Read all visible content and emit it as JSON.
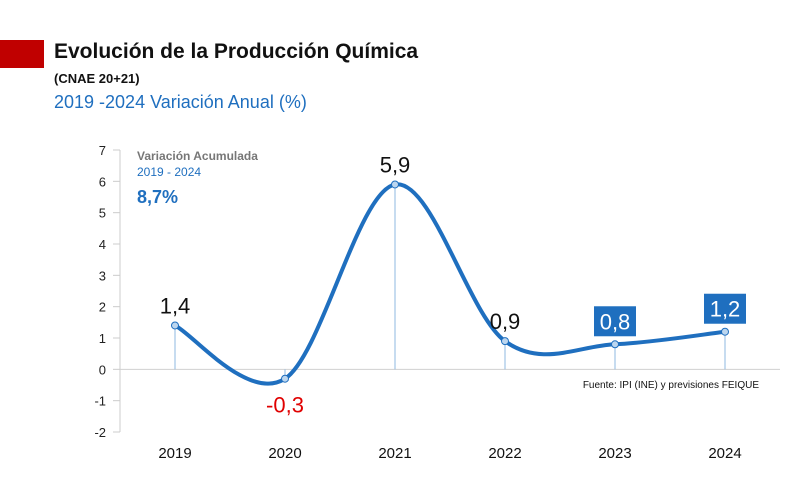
{
  "header": {
    "title": "Evolución de la Producción Química",
    "subtitle": "(CNAE 20+21)",
    "subtitle2": "2019 -2024 Variación Anual (%)"
  },
  "annotation": {
    "title": "Variación Acumulada",
    "range": "2019 - 2024",
    "value": "8,7%"
  },
  "source": "Fuente: IPI (INE) y previsiones FEIQUE",
  "colors": {
    "line": "#1f6fbf",
    "negative_label": "#e00000",
    "accent": "#c00000",
    "box": "#1f6fbf"
  },
  "chart_data": {
    "type": "line",
    "categories": [
      "2019",
      "2020",
      "2021",
      "2022",
      "2023",
      "2024"
    ],
    "values": [
      1.4,
      -0.3,
      5.9,
      0.9,
      0.8,
      1.2
    ],
    "value_labels": [
      "1,4",
      "-0,3",
      "5,9",
      "0,9",
      "0,8",
      "1,2"
    ],
    "boxed_labels": [
      false,
      false,
      false,
      false,
      true,
      true
    ],
    "ylim": [
      -2,
      7
    ],
    "yticks": [
      -2,
      -1,
      0,
      1,
      2,
      3,
      4,
      5,
      6,
      7
    ],
    "smooth": true,
    "grid": false
  }
}
